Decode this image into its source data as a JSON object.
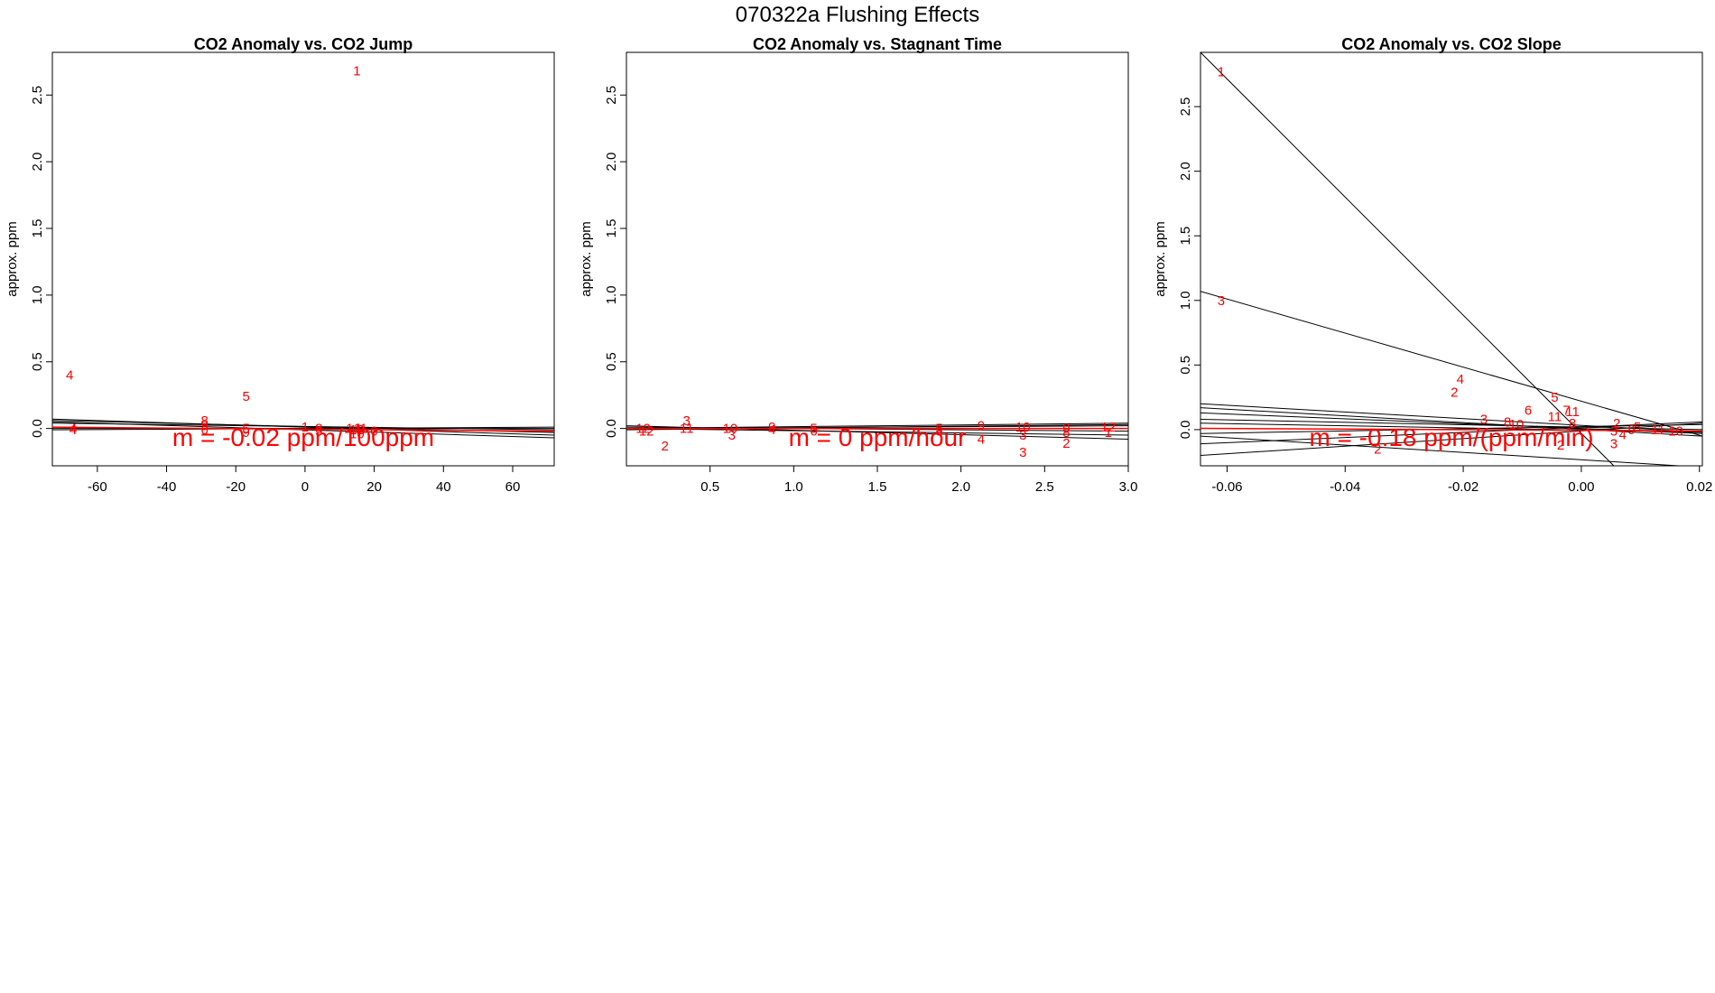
{
  "figure": {
    "title": "070322a    Flushing Effects"
  },
  "colors": {
    "points": "#ff0000",
    "fit_line": "#ff0000",
    "trend_lines": "#000000",
    "frame": "#000000"
  },
  "chart_data": [
    {
      "type": "scatter",
      "title": "CO2 Anomaly vs. CO2 Jump",
      "xlabel": "",
      "ylabel": "approx. ppm",
      "xlim": [
        -73,
        72
      ],
      "ylim": [
        -0.28,
        2.82
      ],
      "xticks": [
        -60,
        -40,
        -20,
        0,
        20,
        40,
        60
      ],
      "yticks": [
        0.0,
        0.5,
        1.0,
        1.5,
        2.0,
        2.5
      ],
      "annotation": "m = -0.02 ppm/100ppm",
      "points": [
        {
          "x": 15,
          "y": 2.68,
          "label": "1"
        },
        {
          "x": -68,
          "y": 0.4,
          "label": "4"
        },
        {
          "x": -17,
          "y": 0.24,
          "label": "5"
        },
        {
          "x": -29,
          "y": 0.06,
          "label": "8"
        },
        {
          "x": -29,
          "y": 0.02,
          "label": "9"
        },
        {
          "x": -29,
          "y": -0.01,
          "label": "6"
        },
        {
          "x": -67,
          "y": 0.0,
          "label": "4"
        },
        {
          "x": -67,
          "y": -0.01,
          "label": "4"
        },
        {
          "x": -17,
          "y": 0.0,
          "label": "5"
        },
        {
          "x": -17,
          "y": -0.03,
          "label": "9"
        },
        {
          "x": 0,
          "y": 0.01,
          "label": "1"
        },
        {
          "x": 4,
          "y": 0.0,
          "label": "8"
        },
        {
          "x": 4,
          "y": -0.02,
          "label": "3"
        },
        {
          "x": 14,
          "y": 0.0,
          "label": "14"
        },
        {
          "x": 15,
          "y": -0.01,
          "label": "12"
        },
        {
          "x": 16,
          "y": 0.0,
          "label": "11"
        },
        {
          "x": 20,
          "y": -0.02,
          "label": "0"
        },
        {
          "x": 15,
          "y": -0.04,
          "label": "10"
        }
      ],
      "trend_lines": [
        {
          "x": [
            -73,
            72
          ],
          "y": [
            0.07,
            -0.05
          ]
        },
        {
          "x": [
            -73,
            72
          ],
          "y": [
            0.05,
            -0.07
          ]
        },
        {
          "x": [
            -73,
            72
          ],
          "y": [
            0.06,
            -0.03
          ]
        },
        {
          "x": [
            -73,
            72
          ],
          "y": [
            0.04,
            -0.01
          ]
        },
        {
          "x": [
            -73,
            72
          ],
          "y": [
            -0.01,
            0.01
          ]
        },
        {
          "x": [
            -73,
            72
          ],
          "y": [
            0.0,
            0.0
          ]
        }
      ],
      "fit_line": {
        "x": [
          -73,
          72
        ],
        "y": [
          0.01,
          -0.02
        ]
      }
    },
    {
      "type": "scatter",
      "title": "CO2 Anomaly vs. Stagnant Time",
      "xlabel": "",
      "ylabel": "approx. ppm",
      "xlim": [
        0.0,
        3.0
      ],
      "ylim": [
        -0.28,
        2.82
      ],
      "xticks": [
        0.5,
        1.0,
        1.5,
        2.0,
        2.5,
        3.0
      ],
      "yticks": [
        0.0,
        0.5,
        1.0,
        1.5,
        2.0,
        2.5
      ],
      "annotation": "m = 0 ppm/hour",
      "points": [
        {
          "x": 0.1,
          "y": 0.0,
          "label": "12"
        },
        {
          "x": 0.12,
          "y": -0.02,
          "label": "12"
        },
        {
          "x": 0.23,
          "y": -0.13,
          "label": "2"
        },
        {
          "x": 0.36,
          "y": 0.06,
          "label": "3"
        },
        {
          "x": 0.36,
          "y": 0.0,
          "label": "11"
        },
        {
          "x": 0.62,
          "y": 0.0,
          "label": "10"
        },
        {
          "x": 0.63,
          "y": -0.05,
          "label": "3"
        },
        {
          "x": 0.87,
          "y": 0.01,
          "label": "9"
        },
        {
          "x": 0.87,
          "y": -0.01,
          "label": "4"
        },
        {
          "x": 1.12,
          "y": 0.0,
          "label": "5"
        },
        {
          "x": 1.12,
          "y": -0.02,
          "label": "6"
        },
        {
          "x": 1.87,
          "y": 0.0,
          "label": "5"
        },
        {
          "x": 1.87,
          "y": -0.02,
          "label": "8"
        },
        {
          "x": 2.12,
          "y": 0.02,
          "label": "9"
        },
        {
          "x": 2.12,
          "y": -0.08,
          "label": "4"
        },
        {
          "x": 2.37,
          "y": 0.01,
          "label": "10"
        },
        {
          "x": 2.37,
          "y": -0.05,
          "label": "3"
        },
        {
          "x": 2.37,
          "y": -0.18,
          "label": "3"
        },
        {
          "x": 2.63,
          "y": 0.0,
          "label": "9"
        },
        {
          "x": 2.63,
          "y": -0.03,
          "label": "8"
        },
        {
          "x": 2.63,
          "y": -0.11,
          "label": "2"
        },
        {
          "x": 2.88,
          "y": 0.01,
          "label": "12"
        },
        {
          "x": 2.88,
          "y": -0.03,
          "label": "1"
        }
      ],
      "trend_lines": [
        {
          "x": [
            0.0,
            3.0
          ],
          "y": [
            0.0,
            0.04
          ]
        },
        {
          "x": [
            0.0,
            3.0
          ],
          "y": [
            0.0,
            0.02
          ]
        },
        {
          "x": [
            0.0,
            3.0
          ],
          "y": [
            0.01,
            -0.02
          ]
        },
        {
          "x": [
            0.0,
            3.0
          ],
          "y": [
            0.0,
            -0.05
          ]
        },
        {
          "x": [
            0.0,
            3.0
          ],
          "y": [
            0.02,
            -0.08
          ]
        },
        {
          "x": [
            0.0,
            3.0
          ],
          "y": [
            -0.01,
            0.03
          ]
        }
      ],
      "fit_line": {
        "x": [
          0.0,
          3.0
        ],
        "y": [
          0.0,
          0.0
        ]
      }
    },
    {
      "type": "scatter",
      "title": "CO2 Anomaly vs. CO2 Slope",
      "xlabel": "",
      "ylabel": "approx. ppm",
      "xlim": [
        -0.0645,
        0.0205
      ],
      "ylim": [
        -0.28,
        2.92
      ],
      "xticks": [
        -0.06,
        -0.04,
        -0.02,
        0.0,
        0.02
      ],
      "yticks": [
        0.0,
        0.5,
        1.0,
        1.5,
        2.0,
        2.5
      ],
      "annotation": "m = -0.18 ppm/(ppm/min)",
      "points": [
        {
          "x": -0.061,
          "y": 2.77,
          "label": "1"
        },
        {
          "x": -0.061,
          "y": 1.0,
          "label": "3"
        },
        {
          "x": -0.0205,
          "y": 0.39,
          "label": "4"
        },
        {
          "x": -0.0215,
          "y": 0.29,
          "label": "2"
        },
        {
          "x": -0.0045,
          "y": 0.25,
          "label": "5"
        },
        {
          "x": -0.009,
          "y": 0.15,
          "label": "6"
        },
        {
          "x": -0.0025,
          "y": 0.15,
          "label": "7"
        },
        {
          "x": -0.0015,
          "y": 0.14,
          "label": "11"
        },
        {
          "x": -0.0045,
          "y": 0.1,
          "label": "11"
        },
        {
          "x": -0.0165,
          "y": 0.08,
          "label": "3"
        },
        {
          "x": -0.0125,
          "y": 0.06,
          "label": "8"
        },
        {
          "x": -0.011,
          "y": 0.04,
          "label": "10"
        },
        {
          "x": -0.0015,
          "y": 0.05,
          "label": "8"
        },
        {
          "x": 0.006,
          "y": 0.05,
          "label": "2"
        },
        {
          "x": 0.0095,
          "y": 0.02,
          "label": "5"
        },
        {
          "x": 0.0055,
          "y": -0.01,
          "label": "3"
        },
        {
          "x": 0.0085,
          "y": 0.0,
          "label": "9"
        },
        {
          "x": 0.013,
          "y": 0.0,
          "label": "11"
        },
        {
          "x": 0.016,
          "y": -0.01,
          "label": "10"
        },
        {
          "x": 0.007,
          "y": -0.04,
          "label": "4"
        },
        {
          "x": -0.0035,
          "y": -0.12,
          "label": "2"
        },
        {
          "x": 0.0055,
          "y": -0.11,
          "label": "3"
        },
        {
          "x": -0.0345,
          "y": -0.15,
          "label": "2"
        }
      ],
      "trend_lines": [
        {
          "x": [
            -0.0645,
            0.0055
          ],
          "y": [
            2.92,
            -0.28
          ]
        },
        {
          "x": [
            -0.0645,
            0.0205
          ],
          "y": [
            1.07,
            -0.05
          ]
        },
        {
          "x": [
            -0.0645,
            0.0205
          ],
          "y": [
            0.2,
            -0.02
          ]
        },
        {
          "x": [
            -0.0645,
            0.0205
          ],
          "y": [
            0.17,
            -0.05
          ]
        },
        {
          "x": [
            -0.0645,
            0.0205
          ],
          "y": [
            0.13,
            -0.03
          ]
        },
        {
          "x": [
            -0.0645,
            0.0205
          ],
          "y": [
            0.08,
            0.0
          ]
        },
        {
          "x": [
            -0.0645,
            0.0205
          ],
          "y": [
            0.05,
            -0.02
          ]
        },
        {
          "x": [
            -0.0645,
            0.0205
          ],
          "y": [
            -0.03,
            0.04
          ]
        },
        {
          "x": [
            -0.0645,
            0.0205
          ],
          "y": [
            -0.11,
            0.06
          ]
        },
        {
          "x": [
            -0.0645,
            0.0205
          ],
          "y": [
            -0.2,
            0.05
          ]
        },
        {
          "x": [
            -0.0645,
            0.0165
          ],
          "y": [
            -0.05,
            -0.28
          ]
        }
      ],
      "fit_line": {
        "x": [
          -0.0645,
          0.0205
        ],
        "y": [
          0.01,
          -0.01
        ]
      }
    }
  ]
}
